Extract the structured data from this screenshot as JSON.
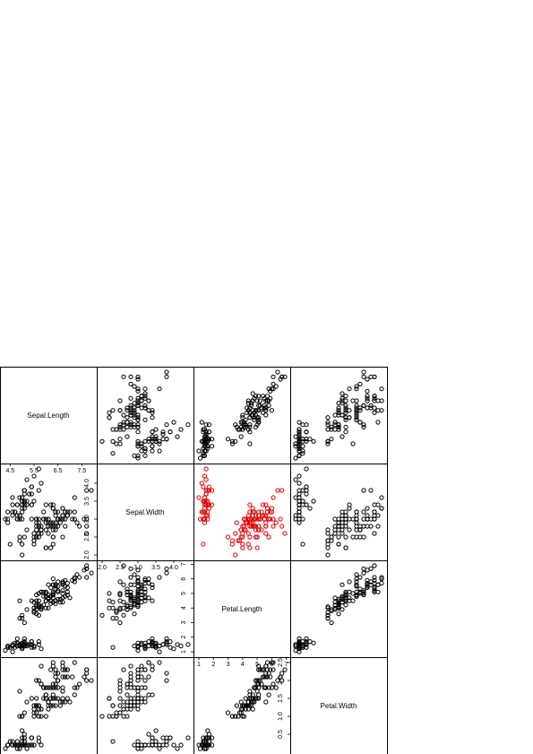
{
  "chart_data": {
    "type": "scatter",
    "title": "",
    "variables": [
      "Sepal.Length",
      "Sepal.Width",
      "Petal.Length",
      "Petal.Width"
    ],
    "tick_labels": {
      "Sepal.Length": [
        "4.5",
        "5.5",
        "6.5",
        "7.5"
      ],
      "Sepal.Width": [
        "2.0",
        "2.5",
        "3.0",
        "3.5",
        "4.0"
      ],
      "Petal.Length": [
        "1",
        "2",
        "3",
        "4",
        "5",
        "6",
        "7"
      ],
      "Petal.Width": [
        "0.5",
        "1.0",
        "1.5",
        "2.0",
        "2.5"
      ]
    },
    "ranges": {
      "Sepal.Length": [
        4.3,
        7.9
      ],
      "Sepal.Width": [
        2.0,
        4.4
      ],
      "Petal.Length": [
        1.0,
        6.9
      ],
      "Petal.Width": [
        0.1,
        2.5
      ]
    },
    "highlight_panel": {
      "row": "Sepal.Width",
      "col": "Petal.Length",
      "color": "#e00000"
    },
    "point_color": "#000000",
    "grid": false,
    "observations": {
      "Sepal.Length": [
        5.1,
        4.9,
        4.7,
        4.6,
        5.0,
        5.4,
        4.6,
        5.0,
        4.4,
        4.9,
        5.4,
        4.8,
        4.8,
        4.3,
        5.8,
        5.7,
        5.4,
        5.1,
        5.7,
        5.1,
        5.4,
        5.1,
        4.6,
        5.1,
        4.8,
        5.0,
        5.0,
        5.2,
        5.2,
        4.7,
        4.8,
        5.4,
        5.2,
        5.5,
        4.9,
        5.0,
        5.5,
        4.9,
        4.4,
        5.1,
        5.0,
        4.5,
        4.4,
        5.0,
        5.1,
        4.8,
        5.1,
        4.6,
        5.3,
        5.0,
        7.0,
        6.4,
        6.9,
        5.5,
        6.5,
        5.7,
        6.3,
        4.9,
        6.6,
        5.2,
        5.0,
        5.9,
        6.0,
        6.1,
        5.6,
        6.7,
        5.6,
        5.8,
        6.2,
        5.6,
        5.9,
        6.1,
        6.3,
        6.1,
        6.4,
        6.6,
        6.8,
        6.7,
        6.0,
        5.7,
        5.5,
        5.5,
        5.8,
        6.0,
        5.4,
        6.0,
        6.7,
        6.3,
        5.6,
        5.5,
        5.5,
        6.1,
        5.8,
        5.0,
        5.6,
        5.7,
        5.7,
        6.2,
        5.1,
        5.7,
        6.3,
        5.8,
        7.1,
        6.3,
        6.5,
        7.6,
        4.9,
        7.3,
        6.7,
        7.2,
        6.5,
        6.4,
        6.8,
        5.7,
        5.8,
        6.4,
        6.5,
        7.7,
        7.7,
        6.0,
        6.9,
        5.6,
        7.7,
        6.3,
        6.7,
        7.2,
        6.2,
        6.1,
        6.4,
        7.2,
        7.4,
        7.9,
        6.4,
        6.3,
        6.1,
        7.7,
        6.3,
        6.4,
        6.0,
        6.9,
        6.7,
        6.9,
        5.8,
        6.8,
        6.7,
        6.7,
        6.3,
        6.5,
        6.2,
        5.9
      ],
      "Sepal.Width": [
        3.5,
        3.0,
        3.2,
        3.1,
        3.6,
        3.9,
        3.4,
        3.4,
        2.9,
        3.1,
        3.7,
        3.4,
        3.0,
        3.0,
        4.0,
        4.4,
        3.9,
        3.5,
        3.8,
        3.8,
        3.4,
        3.7,
        3.6,
        3.3,
        3.4,
        3.0,
        3.4,
        3.5,
        3.4,
        3.2,
        3.1,
        3.4,
        4.1,
        4.2,
        3.1,
        3.2,
        3.5,
        3.6,
        3.0,
        3.4,
        3.5,
        2.3,
        3.2,
        3.5,
        3.8,
        3.0,
        3.8,
        3.2,
        3.7,
        3.3,
        3.2,
        3.2,
        3.1,
        2.3,
        2.8,
        2.8,
        3.3,
        2.4,
        2.9,
        2.7,
        2.0,
        3.0,
        2.2,
        2.9,
        2.9,
        3.1,
        3.0,
        2.7,
        2.2,
        2.5,
        3.2,
        2.8,
        2.5,
        2.8,
        2.9,
        3.0,
        2.8,
        3.0,
        2.9,
        2.6,
        2.4,
        2.4,
        2.7,
        2.7,
        3.0,
        3.4,
        3.1,
        2.3,
        3.0,
        2.5,
        2.6,
        3.0,
        2.6,
        2.3,
        2.7,
        3.0,
        2.9,
        2.9,
        2.5,
        2.8,
        3.3,
        2.7,
        3.0,
        2.9,
        3.0,
        3.0,
        2.5,
        2.9,
        2.5,
        3.6,
        3.2,
        2.7,
        3.0,
        2.5,
        2.8,
        3.2,
        3.0,
        3.8,
        2.6,
        2.2,
        3.2,
        2.8,
        2.8,
        2.7,
        3.3,
        3.2,
        2.8,
        3.0,
        2.8,
        3.0,
        2.8,
        3.8,
        2.8,
        2.8,
        2.6,
        3.0,
        3.4,
        3.1,
        3.0,
        3.1,
        3.1,
        3.1,
        2.7,
        3.2,
        3.3,
        3.0,
        2.5,
        3.0,
        3.4,
        3.0
      ],
      "Petal.Length": [
        1.4,
        1.4,
        1.3,
        1.5,
        1.4,
        1.7,
        1.4,
        1.5,
        1.4,
        1.5,
        1.5,
        1.6,
        1.4,
        1.1,
        1.2,
        1.5,
        1.3,
        1.4,
        1.7,
        1.5,
        1.7,
        1.5,
        1.0,
        1.7,
        1.9,
        1.6,
        1.6,
        1.5,
        1.4,
        1.6,
        1.6,
        1.5,
        1.5,
        1.4,
        1.5,
        1.2,
        1.3,
        1.4,
        1.3,
        1.5,
        1.3,
        1.3,
        1.3,
        1.6,
        1.9,
        1.4,
        1.6,
        1.4,
        1.5,
        1.4,
        4.7,
        4.5,
        4.9,
        4.0,
        4.6,
        4.5,
        4.7,
        3.3,
        4.6,
        3.9,
        3.5,
        4.2,
        4.0,
        4.7,
        3.6,
        4.4,
        4.5,
        4.1,
        4.5,
        3.9,
        4.8,
        4.0,
        4.9,
        4.7,
        4.3,
        4.4,
        4.8,
        5.0,
        4.5,
        3.5,
        3.8,
        3.7,
        3.9,
        5.1,
        4.5,
        4.5,
        4.7,
        4.4,
        4.1,
        4.0,
        4.4,
        4.6,
        4.0,
        3.3,
        4.2,
        4.2,
        4.2,
        4.3,
        3.0,
        4.1,
        6.0,
        5.1,
        5.9,
        5.6,
        5.8,
        6.6,
        4.5,
        6.3,
        5.8,
        6.1,
        5.1,
        5.3,
        5.5,
        5.0,
        5.1,
        5.3,
        5.5,
        6.7,
        6.9,
        5.0,
        5.7,
        4.9,
        6.7,
        4.9,
        5.7,
        6.0,
        4.8,
        4.9,
        5.6,
        5.8,
        6.1,
        6.4,
        5.6,
        5.1,
        5.6,
        6.1,
        5.6,
        5.5,
        4.8,
        5.4,
        5.6,
        5.1,
        5.1,
        5.9,
        5.7,
        5.2,
        5.0,
        5.2,
        5.4,
        5.1
      ],
      "Petal.Width": [
        0.2,
        0.2,
        0.2,
        0.2,
        0.2,
        0.4,
        0.3,
        0.2,
        0.2,
        0.1,
        0.2,
        0.2,
        0.1,
        0.1,
        0.2,
        0.4,
        0.4,
        0.3,
        0.3,
        0.3,
        0.2,
        0.4,
        0.2,
        0.5,
        0.2,
        0.2,
        0.4,
        0.2,
        0.2,
        0.2,
        0.2,
        0.4,
        0.1,
        0.2,
        0.2,
        0.2,
        0.2,
        0.1,
        0.2,
        0.2,
        0.3,
        0.3,
        0.2,
        0.6,
        0.4,
        0.3,
        0.2,
        0.2,
        0.2,
        0.2,
        1.4,
        1.5,
        1.5,
        1.3,
        1.5,
        1.3,
        1.6,
        1.0,
        1.3,
        1.4,
        1.0,
        1.5,
        1.0,
        1.4,
        1.3,
        1.4,
        1.5,
        1.0,
        1.5,
        1.1,
        1.8,
        1.3,
        1.5,
        1.2,
        1.3,
        1.4,
        1.4,
        1.7,
        1.5,
        1.0,
        1.1,
        1.0,
        1.2,
        1.6,
        1.5,
        1.6,
        1.5,
        1.3,
        1.3,
        1.3,
        1.2,
        1.4,
        1.2,
        1.0,
        1.3,
        1.2,
        1.3,
        1.3,
        1.1,
        1.3,
        2.5,
        1.9,
        2.1,
        1.8,
        2.2,
        2.1,
        1.7,
        1.8,
        1.8,
        2.5,
        2.0,
        1.9,
        2.1,
        2.0,
        2.4,
        2.3,
        1.8,
        2.2,
        2.3,
        1.5,
        2.3,
        2.0,
        2.0,
        1.8,
        2.1,
        1.8,
        1.8,
        1.8,
        2.1,
        1.6,
        1.9,
        2.0,
        2.2,
        1.5,
        1.4,
        2.3,
        2.4,
        1.8,
        1.8,
        2.1,
        2.4,
        2.3,
        1.9,
        2.3,
        2.5,
        2.3,
        1.9,
        2.0,
        2.3,
        1.8
      ]
    }
  }
}
